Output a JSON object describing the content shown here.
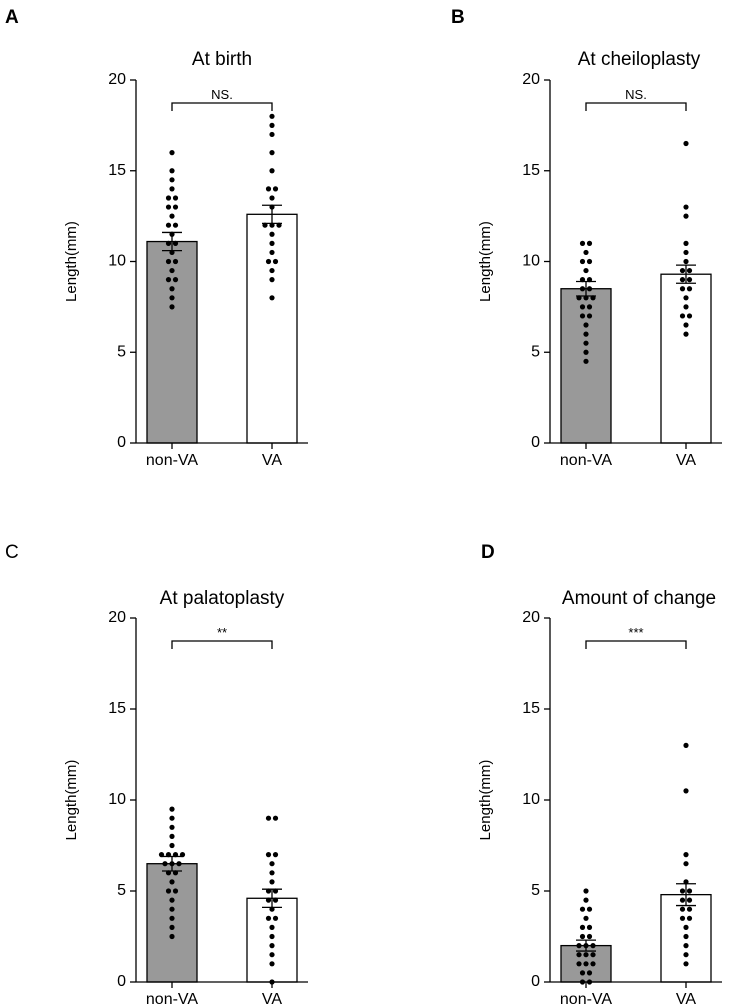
{
  "figure": {
    "background": "#ffffff",
    "bar_colors": [
      "#999999",
      "#ffffff"
    ]
  },
  "chart_data": [
    {
      "panel": "A",
      "panel_bold": true,
      "type": "bar",
      "title": "At birth",
      "ylabel": "Length(mm)",
      "ylim": [
        0,
        20
      ],
      "yticks": [
        0,
        5,
        10,
        15,
        20
      ],
      "categories": [
        "non-VA",
        "VA"
      ],
      "values": [
        11.1,
        12.6
      ],
      "sem": [
        0.5,
        0.5
      ],
      "significance": "NS.",
      "points": [
        [
          16.0,
          15.0,
          14.5,
          14.0,
          13.5,
          13.5,
          13.0,
          13.0,
          12.5,
          12.0,
          12.0,
          11.5,
          11.0,
          11.0,
          10.5,
          10.0,
          10.0,
          9.5,
          9.0,
          9.0,
          8.5,
          8.0,
          7.5
        ],
        [
          18.0,
          17.5,
          17.0,
          16.0,
          15.0,
          14.0,
          14.0,
          13.5,
          13.0,
          12.0,
          12.0,
          12.0,
          11.5,
          11.0,
          10.5,
          10.0,
          10.0,
          9.5,
          9.0,
          8.0
        ]
      ]
    },
    {
      "panel": "B",
      "panel_bold": true,
      "type": "bar",
      "title": "At cheiloplasty",
      "ylabel": "Length(mm)",
      "ylim": [
        0,
        20
      ],
      "yticks": [
        0,
        5,
        10,
        15,
        20
      ],
      "categories": [
        "non-VA",
        "VA"
      ],
      "values": [
        8.5,
        9.3
      ],
      "sem": [
        0.4,
        0.5
      ],
      "significance": "NS.",
      "points": [
        [
          11.0,
          11.0,
          10.5,
          10.0,
          10.0,
          9.5,
          9.0,
          9.0,
          8.5,
          8.5,
          8.0,
          8.0,
          8.0,
          7.5,
          7.5,
          7.0,
          7.0,
          6.5,
          6.0,
          5.5,
          5.0,
          4.5
        ],
        [
          16.5,
          13.0,
          12.5,
          11.0,
          10.5,
          10.0,
          9.5,
          9.5,
          9.0,
          9.0,
          8.5,
          8.5,
          8.0,
          7.5,
          7.0,
          7.0,
          6.5,
          6.0
        ]
      ]
    },
    {
      "panel": "C",
      "panel_bold": false,
      "type": "bar",
      "title": "At palatoplasty",
      "ylabel": "Length(mm)",
      "ylim": [
        0,
        20
      ],
      "yticks": [
        0,
        5,
        10,
        15,
        20
      ],
      "categories": [
        "non-VA",
        "VA"
      ],
      "values": [
        6.5,
        4.6
      ],
      "sem": [
        0.4,
        0.5
      ],
      "significance": "**",
      "points": [
        [
          9.5,
          9.0,
          8.5,
          8.0,
          7.5,
          7.0,
          7.0,
          7.0,
          7.0,
          6.5,
          6.5,
          6.5,
          6.0,
          6.0,
          5.5,
          5.0,
          5.0,
          4.5,
          4.0,
          3.5,
          3.0,
          2.5
        ],
        [
          9.0,
          9.0,
          7.0,
          7.0,
          6.5,
          6.0,
          5.5,
          5.0,
          5.0,
          4.5,
          4.5,
          4.0,
          3.5,
          3.5,
          3.0,
          2.5,
          2.0,
          1.5,
          1.0,
          0.0
        ]
      ]
    },
    {
      "panel": "D",
      "panel_bold": true,
      "type": "bar",
      "title": "Amount of change",
      "ylabel": "Length(mm)",
      "ylim": [
        0,
        20
      ],
      "yticks": [
        0,
        5,
        10,
        15,
        20
      ],
      "categories": [
        "non-VA",
        "VA"
      ],
      "values": [
        2.0,
        4.8
      ],
      "sem": [
        0.3,
        0.6
      ],
      "significance": "***",
      "points": [
        [
          5.0,
          4.5,
          4.0,
          4.0,
          3.5,
          3.0,
          3.0,
          2.5,
          2.5,
          2.0,
          2.0,
          2.0,
          1.5,
          1.5,
          1.5,
          1.0,
          1.0,
          1.0,
          0.5,
          0.5,
          0.0,
          0.0
        ],
        [
          13.0,
          10.5,
          7.0,
          6.5,
          5.5,
          5.0,
          5.0,
          4.5,
          4.5,
          4.0,
          4.0,
          3.5,
          3.5,
          3.0,
          2.5,
          2.0,
          1.5,
          1.0
        ]
      ]
    }
  ]
}
